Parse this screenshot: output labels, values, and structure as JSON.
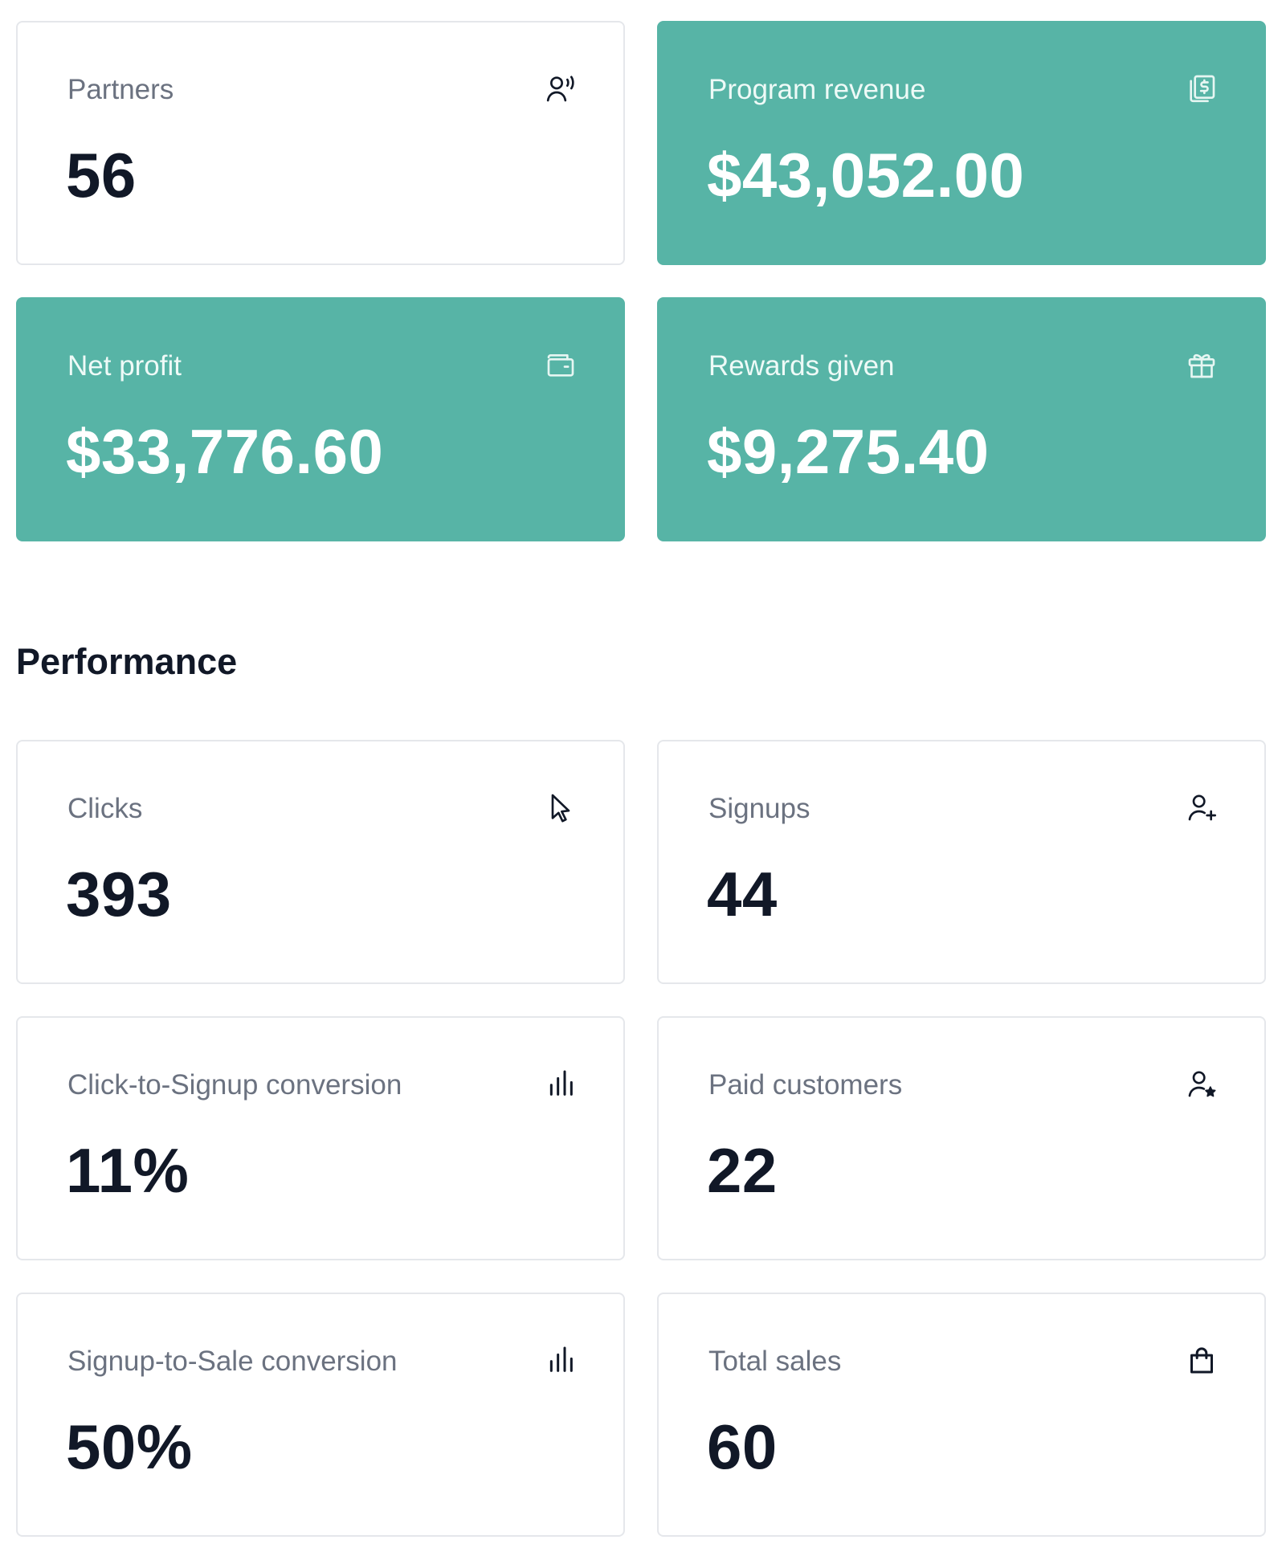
{
  "overview": {
    "cards": [
      {
        "label": "Partners",
        "value": "56",
        "icon": "partner-icon",
        "accent": false
      },
      {
        "label": "Program revenue",
        "value": "$43,052.00",
        "icon": "revenue-icon",
        "accent": true
      },
      {
        "label": "Net profit",
        "value": "$33,776.60",
        "icon": "wallet-icon",
        "accent": true
      },
      {
        "label": "Rewards given",
        "value": "$9,275.40",
        "icon": "gift-icon",
        "accent": true
      }
    ]
  },
  "performance": {
    "title": "Performance",
    "cards": [
      {
        "label": "Clicks",
        "value": "393",
        "icon": "cursor-icon"
      },
      {
        "label": "Signups",
        "value": "44",
        "icon": "user-plus-icon"
      },
      {
        "label": "Click-to-Signup conversion",
        "value": "11%",
        "icon": "bar-chart-icon"
      },
      {
        "label": "Paid customers",
        "value": "22",
        "icon": "user-star-icon"
      },
      {
        "label": "Signup-to-Sale conversion",
        "value": "50%",
        "icon": "bar-chart-icon"
      },
      {
        "label": "Total sales",
        "value": "60",
        "icon": "shopping-bag-icon"
      }
    ]
  },
  "colors": {
    "accent": "#57b4a6",
    "text": "#111827",
    "muted": "#6b7280",
    "border": "#e5e7eb"
  }
}
